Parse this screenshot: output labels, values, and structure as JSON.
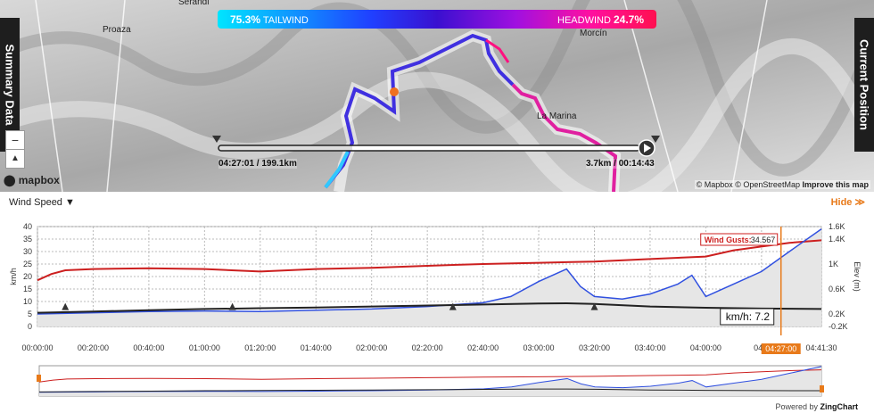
{
  "map": {
    "summary_tab": "Summary Data",
    "position_tab": "Current Position",
    "zoom_in": "+",
    "zoom_out": "−",
    "compass": "▲",
    "labels": [
      "Proaza",
      "Serandi",
      "Morcín",
      "La Marina"
    ],
    "windbar": {
      "tail_pct": "75.3%",
      "tail_label": "TAILWIND",
      "head_label": "HEADWIND",
      "head_pct": "24.7%"
    },
    "scrubber": {
      "left": "04:27:01 / 199.1km",
      "right": "3.7km / 00:14:43"
    },
    "mapbox_logo": "mapbox",
    "attribution_mapbox": "© Mapbox",
    "attribution_osm": "© OpenStreetMap",
    "improve": "Improve this map",
    "colors": {
      "tail": "#00e5ff",
      "head": "#ff1050",
      "marker": "#f07020"
    }
  },
  "chart": {
    "selector": "Wind Speed ▼",
    "hide": "Hide ≫",
    "powered_by": "Powered by",
    "brand": "ZingChart",
    "tooltip_gust_label": "Wind Gusts:",
    "tooltip_gust_value": "34.567",
    "tooltip_speed": "km/h: 7.2",
    "cursor_time": "04:27:00"
  },
  "chart_data": {
    "type": "line",
    "ylabel": "km/h",
    "y2label": "Elev (m)",
    "ylim": [
      0,
      40
    ],
    "y_ticks": [
      "0",
      "5",
      "10",
      "15",
      "20",
      "25",
      "30",
      "35",
      "40"
    ],
    "y2_ticks": [
      "-0.2K",
      "0.2K",
      "0.6K",
      "1K",
      "1.4K",
      "1.6K"
    ],
    "x_ticks": [
      "00:00:00",
      "00:20:00",
      "00:40:00",
      "01:00:00",
      "01:20:00",
      "01:40:00",
      "02:00:00",
      "02:20:00",
      "02:40:00",
      "03:00:00",
      "03:20:00",
      "03:40:00",
      "04:00:00",
      "04:2",
      "04:41:30"
    ],
    "x_minutes": [
      0,
      20,
      40,
      60,
      80,
      100,
      120,
      140,
      160,
      180,
      200,
      220,
      240,
      260,
      281.5
    ],
    "series": [
      {
        "name": "Wind Gusts",
        "color": "#cc1f1f",
        "x": [
          0,
          5,
          10,
          20,
          40,
          60,
          80,
          100,
          120,
          140,
          160,
          180,
          200,
          220,
          240,
          250,
          260,
          270,
          281.5
        ],
        "values": [
          18.5,
          21,
          22.5,
          23,
          23.3,
          23,
          22,
          23,
          23.5,
          24.3,
          25,
          25.5,
          26,
          27,
          28,
          30.5,
          32,
          33.5,
          34.5
        ]
      },
      {
        "name": "Wind Speed",
        "color": "#3050e0",
        "x": [
          0,
          20,
          40,
          60,
          80,
          100,
          120,
          140,
          160,
          170,
          180,
          190,
          195,
          200,
          210,
          220,
          230,
          235,
          240,
          250,
          260,
          270,
          281.5
        ],
        "values": [
          5,
          5.5,
          6,
          6.2,
          6,
          6.5,
          7,
          8,
          9.5,
          12,
          18,
          23,
          16,
          12,
          11,
          13,
          17,
          20.5,
          12,
          17,
          22,
          30,
          39
        ]
      },
      {
        "name": "Elevation",
        "color": "#222222",
        "x": [
          0,
          20,
          40,
          60,
          80,
          100,
          120,
          140,
          160,
          180,
          190,
          200,
          220,
          240,
          260,
          281.5
        ],
        "values": [
          5.5,
          6,
          6.5,
          7,
          7.3,
          7.6,
          8,
          8.4,
          8.8,
          9.2,
          9.3,
          9,
          8,
          7.5,
          7.2,
          7
        ]
      }
    ],
    "cursor_minute": 267
  }
}
